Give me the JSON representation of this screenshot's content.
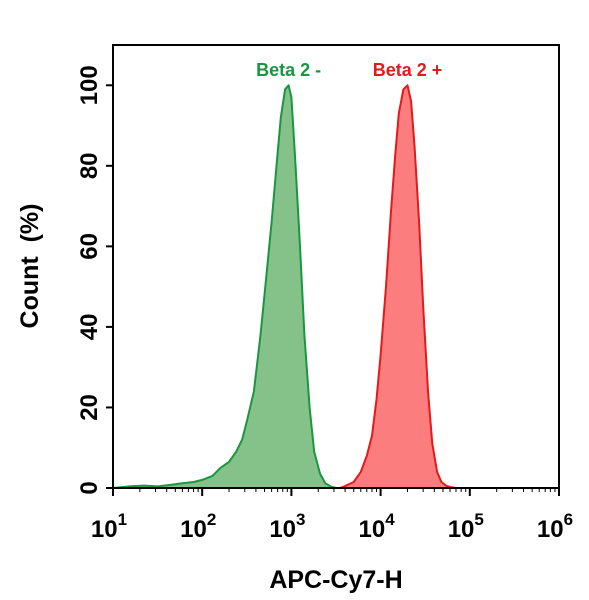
{
  "chart_data": {
    "type": "area",
    "xlabel": "APC-Cy7-H",
    "ylabel": "Count  (%)",
    "xscale": "log",
    "xlim": [
      10,
      1000000
    ],
    "ylim": [
      0,
      110
    ],
    "x_ticks": [
      {
        "value": 10,
        "base": "10",
        "exp": "1"
      },
      {
        "value": 100,
        "base": "10",
        "exp": "2"
      },
      {
        "value": 1000,
        "base": "10",
        "exp": "3"
      },
      {
        "value": 10000,
        "base": "10",
        "exp": "4"
      },
      {
        "value": 100000,
        "base": "10",
        "exp": "5"
      },
      {
        "value": 1000000,
        "base": "10",
        "exp": "6"
      }
    ],
    "y_ticks": [
      0,
      20,
      40,
      60,
      80,
      100
    ],
    "grid": false,
    "series": [
      {
        "name": "Beta 2 -",
        "color": "#1a9641",
        "fill": "#85c28a",
        "x": [
          10,
          15,
          22,
          32,
          45,
          60,
          80,
          100,
          130,
          160,
          200,
          240,
          280,
          320,
          380,
          450,
          520,
          600,
          680,
          760,
          850,
          930,
          1000,
          1100,
          1250,
          1400,
          1600,
          1800,
          2100,
          2400,
          2800,
          3200
        ],
        "y": [
          0,
          0.4,
          0.6,
          0.4,
          0.8,
          1.2,
          1.5,
          2,
          3,
          5,
          6.5,
          9,
          12,
          17,
          24,
          38,
          52,
          66,
          80,
          92,
          99,
          100,
          97,
          82,
          60,
          38,
          20,
          9,
          3.5,
          1.2,
          0.3,
          0
        ]
      },
      {
        "name": "Beta 2 +",
        "color": "#e31a1c",
        "fill": "#fb7d7d",
        "x": [
          3500,
          4000,
          5000,
          6000,
          7000,
          8000,
          9000,
          10000,
          11500,
          13000,
          14500,
          16000,
          18000,
          20000,
          22000,
          24000,
          27000,
          30000,
          34000,
          38000,
          43000,
          48000,
          55000,
          62000,
          70000
        ],
        "y": [
          0,
          0.5,
          1.5,
          4,
          8,
          13,
          22,
          33,
          50,
          68,
          82,
          93,
          99,
          100,
          96,
          85,
          66,
          45,
          24,
          11,
          4,
          1.5,
          0.5,
          0.2,
          0
        ]
      }
    ]
  }
}
